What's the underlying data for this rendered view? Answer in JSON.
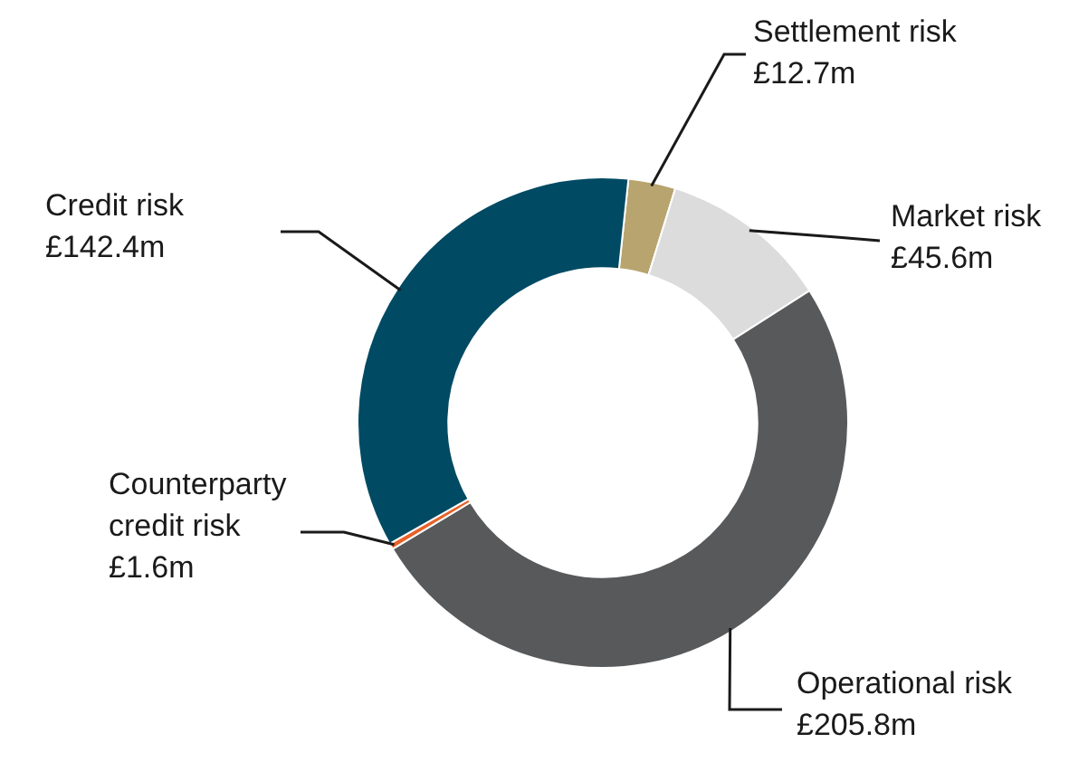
{
  "chart_data": {
    "type": "donut",
    "categories": [
      "Settlement risk",
      "Market risk",
      "Operational risk",
      "Counterparty credit risk",
      "Credit risk"
    ],
    "values": [
      12.7,
      45.6,
      205.8,
      1.6,
      142.4
    ],
    "value_labels": [
      "£12.7m",
      "£45.6m",
      "£205.8m",
      "£1.6m",
      "£142.4m"
    ],
    "colors": [
      "#b8a46e",
      "#dcdcdc",
      "#58595b",
      "#e8622a",
      "#004a63"
    ],
    "legend": false
  }
}
